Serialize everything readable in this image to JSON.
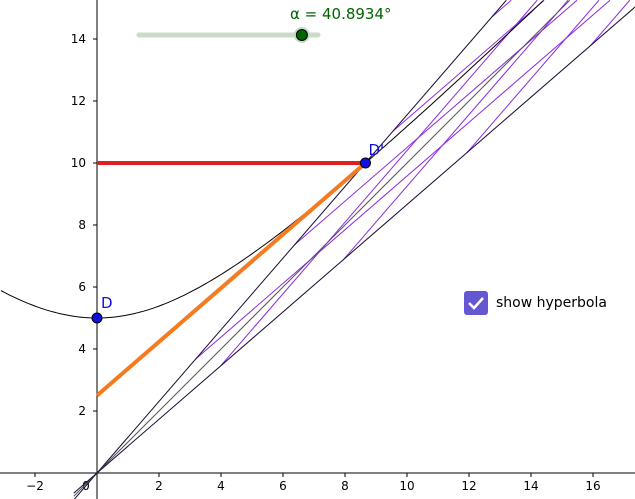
{
  "slider": {
    "label": "α = 40.8934°",
    "value_deg": 40.8934
  },
  "checkbox": {
    "label": "show hyperbola",
    "checked": true
  },
  "points": {
    "D": "D",
    "Dp": "D'"
  },
  "axes": {
    "x_ticks": [
      "−2",
      "0",
      "2",
      "4",
      "6",
      "8",
      "10",
      "12",
      "14",
      "16"
    ],
    "y_ticks": [
      "2",
      "4",
      "6",
      "8",
      "10",
      "12",
      "14"
    ]
  },
  "colors": {
    "segment": "#e0201f",
    "tangent": "#f47b20",
    "trace": "#8a2be2",
    "point": "#1010e0",
    "slider": "#006400",
    "checkbox": "#6557d2"
  }
}
